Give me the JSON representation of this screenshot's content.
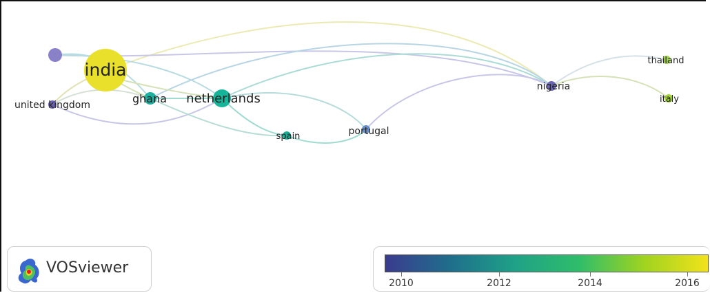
{
  "nodes": {
    "india": "india",
    "ghana": "ghana",
    "netherlands": "netherlands",
    "united_kingdom": "united kingdom",
    "spain": "spain",
    "portugal": "portugal",
    "nigeria": "nigeria",
    "thailand": "thailand",
    "italy": "italy"
  },
  "logo": {
    "text": "VOSviewer"
  },
  "legend": {
    "ticks": [
      "2010",
      "2012",
      "2014",
      "2016"
    ],
    "colors": [
      "#3b3b8f",
      "#1f6e8c",
      "#1fa187",
      "#2fbd6a",
      "#9fd320",
      "#f2e21b"
    ]
  },
  "colors": {
    "india": "#e8e02a",
    "ghana": "#1fb0a0",
    "netherlands": "#16b59a",
    "united_kingdom": "#6a62b0",
    "unlabeled_top": "#8a82c8",
    "spain": "#18ad92",
    "portugal": "#6a8ec8",
    "nigeria": "#6a66b4",
    "thailand": "#9fd34a",
    "italy": "#a6d43a"
  }
}
